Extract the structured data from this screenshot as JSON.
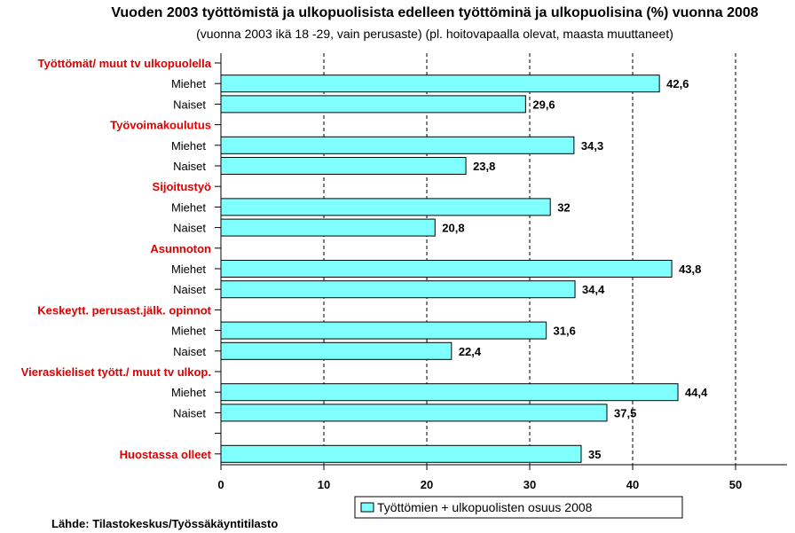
{
  "chart_data": {
    "type": "bar",
    "orientation": "horizontal",
    "title": "Vuoden 2003 työttömistä ja ulkopuolisista edelleen työttöminä ja ulkopuolisina (%) vuonna 2008",
    "subtitle": "(vuonna 2003 ikä 18 -29, vain perusaste) (pl. hoitovapaalla olevat, maasta muuttaneet)",
    "xlim": [
      0,
      55
    ],
    "xticks": [
      0,
      10,
      20,
      30,
      40,
      50
    ],
    "grid": "vertical-dashed",
    "legend": {
      "label": "Työttömien + ulkopuolisten osuus 2008",
      "position": "bottom"
    },
    "bar_color": "#80ffff",
    "group_label_color": "#e00000",
    "rows": [
      {
        "label": "Työttömät/ muut tv ulkopuolella",
        "kind": "group"
      },
      {
        "label": "Miehet",
        "kind": "bar",
        "value": 42.6,
        "value_label": "42,6"
      },
      {
        "label": "Naiset",
        "kind": "bar",
        "value": 29.6,
        "value_label": "29,6"
      },
      {
        "label": "Työvoimakoulutus",
        "kind": "group"
      },
      {
        "label": "Miehet",
        "kind": "bar",
        "value": 34.3,
        "value_label": "34,3"
      },
      {
        "label": "Naiset",
        "kind": "bar",
        "value": 23.8,
        "value_label": "23,8"
      },
      {
        "label": "Sijoitustyö",
        "kind": "group"
      },
      {
        "label": "Miehet",
        "kind": "bar",
        "value": 32,
        "value_label": "32"
      },
      {
        "label": "Naiset",
        "kind": "bar",
        "value": 20.8,
        "value_label": "20,8"
      },
      {
        "label": "Asunnoton",
        "kind": "group"
      },
      {
        "label": "Miehet",
        "kind": "bar",
        "value": 43.8,
        "value_label": "43,8"
      },
      {
        "label": "Naiset",
        "kind": "bar",
        "value": 34.4,
        "value_label": "34,4"
      },
      {
        "label": "Keskeytt. perusast.jälk. opinnot",
        "kind": "group"
      },
      {
        "label": "Miehet",
        "kind": "bar",
        "value": 31.6,
        "value_label": "31,6"
      },
      {
        "label": "Naiset",
        "kind": "bar",
        "value": 22.4,
        "value_label": "22,4"
      },
      {
        "label": "Vieraskieliset  tyött./ muut tv ulkop.",
        "kind": "group"
      },
      {
        "label": "Miehet",
        "kind": "bar",
        "value": 44.4,
        "value_label": "44,4"
      },
      {
        "label": "Naiset",
        "kind": "bar",
        "value": 37.5,
        "value_label": "37,5"
      },
      {
        "label": "",
        "kind": "spacer"
      },
      {
        "label": "Huostassa olleet",
        "kind": "group",
        "value": 35,
        "value_label": "35"
      }
    ]
  },
  "source": "Lähde: Tilastokeskus/Työssäkäyntitilasto"
}
